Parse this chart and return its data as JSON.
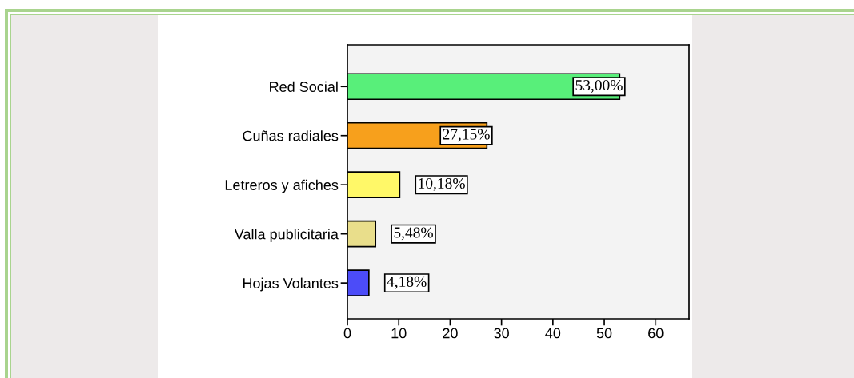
{
  "chart_data": {
    "type": "bar",
    "orientation": "horizontal",
    "categories": [
      "Red Social",
      "Cuñas radiales",
      "Letreros y afiches",
      "Valla publicitaria",
      "Hojas Volantes"
    ],
    "values": [
      53.0,
      27.15,
      10.18,
      5.48,
      4.18
    ],
    "colors": [
      "#58ef7a",
      "#f7a01c",
      "#fff868",
      "#e9de8b",
      "#4c4cf8"
    ],
    "value_labels": [
      "53,00%",
      "27,15%",
      "10,18%",
      "5,48%",
      "4,18%"
    ],
    "xlim": [
      0,
      66.5
    ],
    "xticks": [
      0,
      10,
      20,
      30,
      40,
      50,
      60
    ]
  }
}
